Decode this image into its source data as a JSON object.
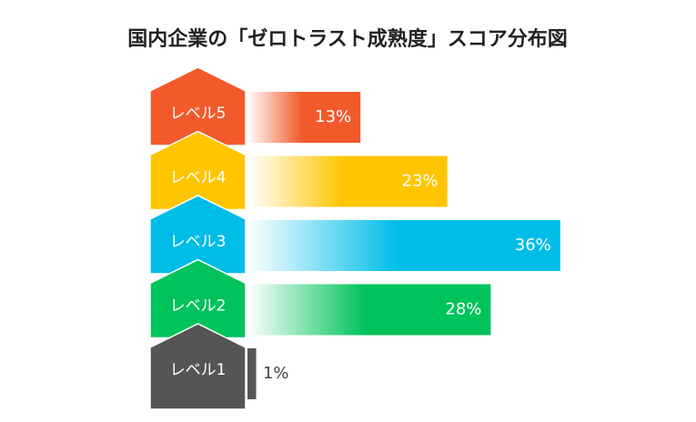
{
  "chart_data": {
    "type": "bar",
    "title": "国内企業の「ゼロトラスト成熟度」スコア分布図",
    "categories": [
      "レベル5",
      "レベル4",
      "レベル3",
      "レベル2",
      "レベル1"
    ],
    "values": [
      13,
      23,
      36,
      28,
      1
    ],
    "value_labels": [
      "13%",
      "23%",
      "36%",
      "28%",
      "1%"
    ],
    "colors": [
      "#f25a2c",
      "#ffc500",
      "#00bde8",
      "#00c35b",
      "#555555"
    ]
  }
}
